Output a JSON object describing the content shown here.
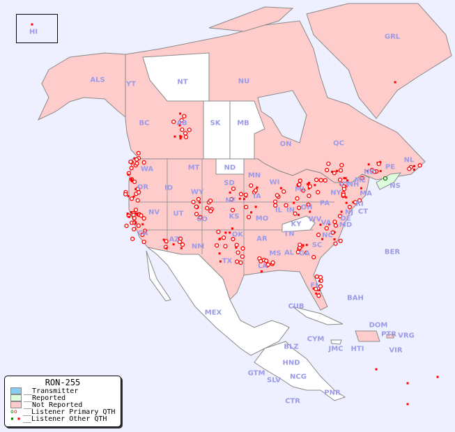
{
  "legend": {
    "title": "RON-255",
    "items": [
      {
        "label": "__Transmitter",
        "color": "#88ccf0"
      },
      {
        "label": "__Reported",
        "color": "#ddffdd"
      },
      {
        "label": "__Not Reported",
        "color": "#ffcccc"
      },
      {
        "label": "__Listener Primary QTH",
        "colors": [
          "#007700",
          "#ff0000"
        ]
      },
      {
        "label": "__Listener Other QTH",
        "colors": [
          "#007700",
          "#ff0000"
        ]
      }
    ]
  },
  "colors": {
    "ocean": "#eef0ff",
    "not_reported": "#ffcccc",
    "reported": "#ddffdd",
    "no_data": "#ffffff",
    "listener": "#ff0000",
    "label": "#9a9ae8"
  },
  "labels": [
    "HI",
    "ALS",
    "YT",
    "NT",
    "NU",
    "GRL",
    "BC",
    "AB",
    "SK",
    "MB",
    "ON",
    "QC",
    "NL",
    "NB",
    "PE",
    "NS",
    "WA",
    "OR",
    "ID",
    "MT",
    "ND",
    "MN",
    "WI",
    "MI",
    "SD",
    "WY",
    "NE",
    "IA",
    "IL",
    "IN",
    "OH",
    "PA",
    "NY",
    "VT",
    "NH",
    "ME",
    "MA",
    "RI",
    "CT",
    "NJ",
    "DE",
    "MD",
    "NV",
    "UT",
    "CO",
    "KS",
    "MO",
    "KY",
    "WV",
    "VA",
    "CA",
    "AZ",
    "NM",
    "OK",
    "AR",
    "TN",
    "NC",
    "SC",
    "GA",
    "AL",
    "MS",
    "LA",
    "TX",
    "FL",
    "MEX",
    "CUB",
    "BAH",
    "BER",
    "DOM",
    "PTR",
    "VRG",
    "CYM",
    "JMC",
    "HTI",
    "VIR",
    "BLZ",
    "GTM",
    "HND",
    "SLV",
    "NCG",
    "CTR",
    "PNR"
  ]
}
